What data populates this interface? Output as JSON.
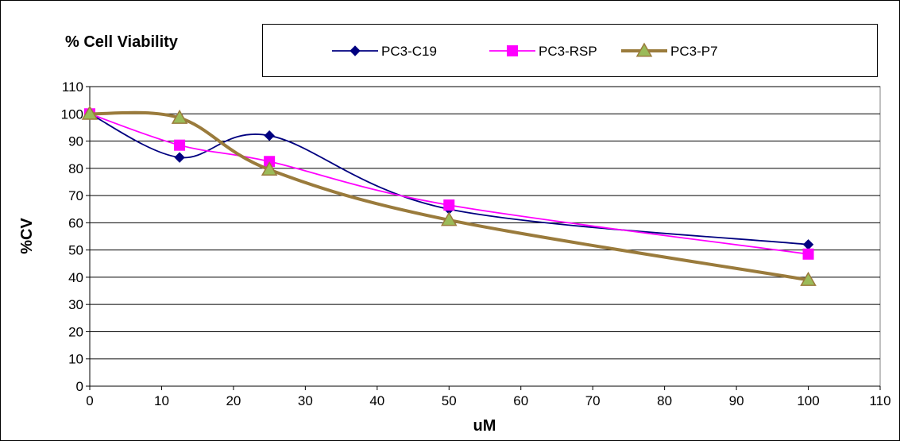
{
  "chart_data": {
    "type": "line",
    "title": "% Cell Viability",
    "xlabel": "uM",
    "ylabel": "%CV",
    "xlim": [
      0,
      110
    ],
    "ylim": [
      0,
      110
    ],
    "x_ticks": [
      0,
      10,
      20,
      30,
      40,
      50,
      60,
      70,
      80,
      90,
      100,
      110
    ],
    "y_ticks": [
      0,
      10,
      20,
      30,
      40,
      50,
      60,
      70,
      80,
      90,
      100,
      110
    ],
    "grid": "horizontal",
    "legend_position": "top",
    "series": [
      {
        "name": "PC3-C19",
        "color": "#000080",
        "marker": "diamond",
        "x": [
          0,
          12.5,
          25,
          50,
          100
        ],
        "y": [
          100,
          84,
          92,
          65,
          52
        ]
      },
      {
        "name": "PC3-RSP",
        "color": "#FF00FF",
        "marker": "square",
        "x": [
          0,
          12.5,
          25,
          50,
          100
        ],
        "y": [
          100,
          88.5,
          82.5,
          66.5,
          48.5
        ]
      },
      {
        "name": "PC3-P7",
        "color": "#9A7B3C",
        "marker_fill": "#9BBB59",
        "marker": "triangle",
        "x": [
          0,
          12.5,
          25,
          50,
          100
        ],
        "y": [
          100,
          98.5,
          79.5,
          61,
          39
        ]
      }
    ]
  }
}
